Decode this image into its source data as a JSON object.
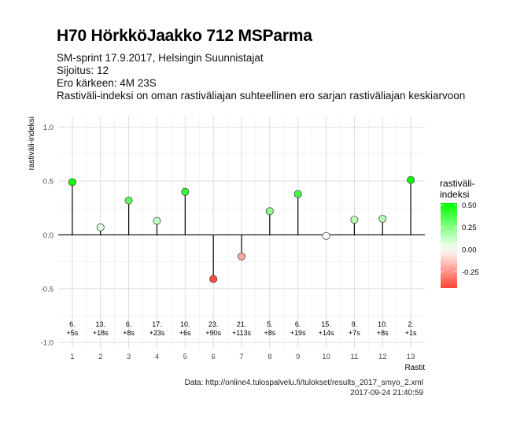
{
  "chart_data": {
    "type": "lollipop",
    "title": "H70 HörkköJaakko 712 MSParma",
    "subtitle_lines": [
      "SM-sprint 17.9.2017, Helsingin Suunnistajat",
      "Sijoitus: 12",
      "Ero kärkeen: 4M 23S",
      "Rastiväli-indeksi on oman rastiväliajan suhteellinen ero sarjan rastiväliajan keskiarvoon"
    ],
    "xlabel": "Rastit",
    "ylabel": "rastiväli-indeksi",
    "ylim": [
      -1.05,
      1.1
    ],
    "yticks": [
      -1.0,
      -0.5,
      0.0,
      0.5,
      1.0
    ],
    "ytick_labels": [
      "-1.0",
      "-0.5",
      "0.0",
      "0.5",
      "1.0"
    ],
    "x": [
      1,
      2,
      3,
      4,
      5,
      6,
      7,
      8,
      9,
      10,
      11,
      12,
      13
    ],
    "values": [
      0.49,
      0.07,
      0.32,
      0.13,
      0.4,
      -0.41,
      -0.2,
      0.22,
      0.38,
      -0.01,
      0.14,
      0.15,
      0.51
    ],
    "rank_labels": [
      "6.",
      "13.",
      "6.",
      "17.",
      "10.",
      "23.",
      "21.",
      "5.",
      "6.",
      "15.",
      "9.",
      "10.",
      "2."
    ],
    "diff_labels": [
      "+5s",
      "+18s",
      "+8s",
      "+23s",
      "+6s",
      "+90s",
      "+113s",
      "+8s",
      "+19s",
      "+14s",
      "+7s",
      "+8s",
      "+1s"
    ],
    "grid": true,
    "legend": {
      "title_lines": [
        "rastiväli-",
        "indeksi"
      ],
      "placement": "right",
      "ticks": [
        0.5,
        0.25,
        0.0,
        -0.25
      ],
      "tick_labels": [
        "0.50",
        "0.25",
        "0.00",
        "-0.25"
      ],
      "range": [
        -0.43,
        0.52
      ],
      "color_high": "#00ff00",
      "color_mid": "#ffffff",
      "color_low": "#ff4433"
    },
    "caption_lines": [
      "Data: http://online4.tulospalvelu.fi/tulokset/results_2017_smyo_2.xml",
      "2017-09-24 21:40:59"
    ]
  }
}
